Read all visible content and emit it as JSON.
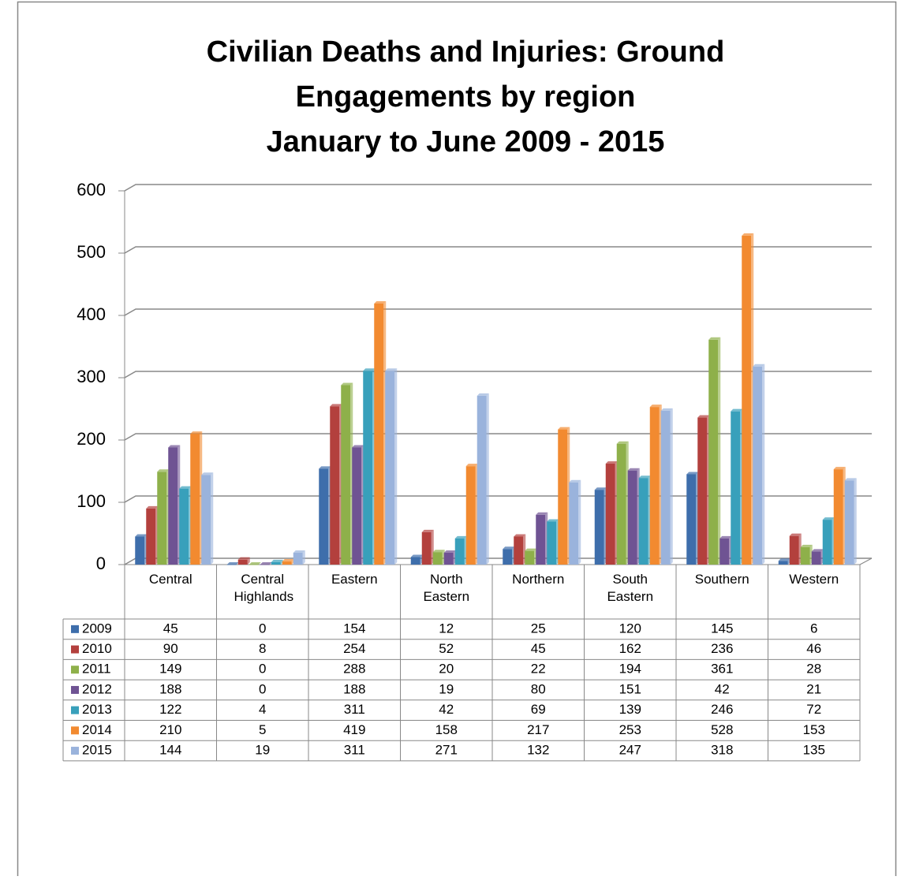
{
  "chart_data": {
    "type": "bar",
    "title": [
      "Civilian Deaths and Injuries: Ground",
      "Engagements by region",
      "January to June 2009 - 2015"
    ],
    "categories": [
      "Central",
      "Central Highlands",
      "Eastern",
      "North Eastern",
      "Northern",
      "South Eastern",
      "Southern",
      "Western"
    ],
    "series": [
      {
        "name": "2009",
        "color": "#3e6eab",
        "values": [
          45,
          0,
          154,
          12,
          25,
          120,
          145,
          6
        ]
      },
      {
        "name": "2010",
        "color": "#b3403d",
        "values": [
          90,
          8,
          254,
          52,
          45,
          162,
          236,
          46
        ]
      },
      {
        "name": "2011",
        "color": "#8eb04a",
        "values": [
          149,
          0,
          288,
          20,
          22,
          194,
          361,
          28
        ]
      },
      {
        "name": "2012",
        "color": "#6f5393",
        "values": [
          188,
          0,
          188,
          19,
          80,
          151,
          42,
          21
        ]
      },
      {
        "name": "2013",
        "color": "#38a0bb",
        "values": [
          122,
          4,
          311,
          42,
          69,
          139,
          246,
          72
        ]
      },
      {
        "name": "2014",
        "color": "#f28a30",
        "values": [
          210,
          5,
          419,
          158,
          217,
          253,
          528,
          153
        ]
      },
      {
        "name": "2015",
        "color": "#9ab3dc",
        "values": [
          144,
          19,
          311,
          271,
          132,
          247,
          318,
          135
        ]
      }
    ],
    "ylim": [
      0,
      600
    ],
    "yticks": [
      0,
      100,
      200,
      300,
      400,
      500,
      600
    ],
    "grid": true
  }
}
